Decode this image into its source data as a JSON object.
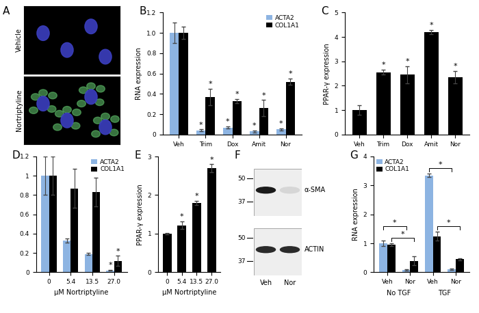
{
  "chart_data": [
    {
      "title": "B",
      "type": "bar",
      "categories": [
        "Veh",
        "Trim",
        "Dox",
        "Amit",
        "Nor"
      ],
      "series": [
        {
          "name": "ACTA2",
          "color": "#8db4e2",
          "values": [
            1.0,
            0.04,
            0.07,
            0.03,
            0.05
          ],
          "errors": [
            0.1,
            0.01,
            0.01,
            0.01,
            0.01
          ],
          "significance": [
            null,
            "*",
            "*",
            "*",
            "*"
          ]
        },
        {
          "name": "COL1A1",
          "color": "#000000",
          "values": [
            1.0,
            0.37,
            0.33,
            0.26,
            0.52
          ],
          "errors": [
            0.06,
            0.08,
            0.02,
            0.08,
            0.03
          ],
          "significance": [
            null,
            "*",
            "*",
            "*",
            "*"
          ]
        }
      ],
      "ylabel": "RNA expression",
      "ylim": [
        0,
        1.2
      ],
      "yticks": [
        0,
        0.2,
        0.4,
        0.6,
        0.8,
        1.0,
        1.2
      ],
      "legend": "upper right"
    },
    {
      "title": "C",
      "type": "bar",
      "categories": [
        "Veh",
        "Trim",
        "Dox",
        "Amit",
        "Nor"
      ],
      "values": [
        1.0,
        2.55,
        2.45,
        4.2,
        2.35
      ],
      "errors": [
        0.2,
        0.1,
        0.35,
        0.08,
        0.25
      ],
      "significance": [
        null,
        "*",
        "*",
        "*",
        "*"
      ],
      "color": "#000000",
      "ylabel": "PPAR-γ expression",
      "ylim": [
        0,
        5
      ],
      "yticks": [
        0,
        1,
        2,
        3,
        4,
        5
      ]
    },
    {
      "title": "D",
      "type": "bar",
      "categories": [
        "0",
        "5.4",
        "13.5",
        "27.0"
      ],
      "series": [
        {
          "name": "ACTA2",
          "color": "#8db4e2",
          "values": [
            1.0,
            0.33,
            0.19,
            0.02
          ],
          "errors": [
            0.2,
            0.02,
            0.01,
            0.005
          ],
          "significance": [
            null,
            null,
            null,
            "*"
          ]
        },
        {
          "name": "COL1A1",
          "color": "#000000",
          "values": [
            1.0,
            0.87,
            0.83,
            0.12
          ],
          "errors": [
            0.2,
            0.2,
            0.15,
            0.05
          ],
          "significance": [
            null,
            null,
            null,
            "*"
          ]
        }
      ],
      "xlabel": "µM Nortriptyline",
      "ylim": [
        0,
        1.2
      ],
      "yticks": [
        0,
        0.2,
        0.4,
        0.6,
        0.8,
        1,
        1.2
      ],
      "legend": "upper right"
    },
    {
      "title": "E",
      "type": "bar",
      "categories": [
        "0",
        "5.4",
        "13.5",
        "27.0"
      ],
      "values": [
        1.0,
        1.22,
        1.8,
        2.7
      ],
      "errors": [
        0.02,
        0.1,
        0.05,
        0.1
      ],
      "significance": [
        null,
        "*",
        "*",
        "*"
      ],
      "color": "#000000",
      "xlabel": "µM Nortriptyline",
      "ylabel": "PPAR-γ expression",
      "ylim": [
        0,
        3
      ],
      "yticks": [
        0,
        1,
        2,
        3
      ]
    },
    {
      "title": "G",
      "type": "bar",
      "categories": [
        "Veh",
        "Nor",
        "Veh",
        "Nor"
      ],
      "series": [
        {
          "name": "ACTA2",
          "color": "#8db4e2",
          "values": [
            1.0,
            0.08,
            3.35,
            0.1
          ],
          "errors": [
            0.1,
            0.02,
            0.05,
            0.02
          ]
        },
        {
          "name": "COL1A1",
          "color": "#000000",
          "values": [
            0.95,
            0.4,
            1.25,
            0.45
          ],
          "errors": [
            0.05,
            0.15,
            0.15,
            0.03
          ]
        }
      ],
      "groups": [
        {
          "label": "No TGF",
          "categories": [
            0,
            1
          ]
        },
        {
          "label": "TGF",
          "categories": [
            2,
            3
          ]
        }
      ],
      "comparisons": [
        {
          "series": "COL1A1",
          "categories": [
            0,
            1
          ],
          "label": "*"
        },
        {
          "series": "ACTA2",
          "categories": [
            0,
            1
          ],
          "label": "*"
        },
        {
          "series": "COL1A1",
          "categories": [
            2,
            3
          ],
          "label": "*"
        },
        {
          "series": "ACTA2",
          "categories": [
            2,
            3
          ],
          "label": "*"
        }
      ],
      "ylabel": "RNA expression",
      "ylim": [
        0,
        4
      ],
      "yticks": [
        0,
        1,
        2,
        3,
        4
      ],
      "legend": "upper left"
    }
  ],
  "images": {
    "title": "A",
    "rows": [
      "Vehicle",
      "Nortriptyline"
    ]
  },
  "blot": {
    "title": "F",
    "lanes": [
      "Veh",
      "Nor"
    ],
    "blots": [
      {
        "label": "α-SMA",
        "markers": [
          50,
          37
        ]
      },
      {
        "label": "ACTIN",
        "markers": [
          50,
          37
        ]
      }
    ]
  }
}
